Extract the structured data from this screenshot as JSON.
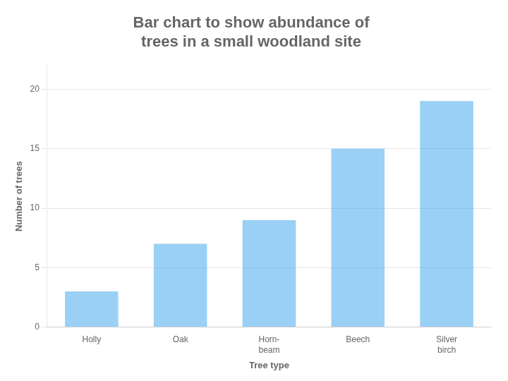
{
  "chart_data": {
    "type": "bar",
    "title": "Bar chart to show abundance of\ntrees in a small woodland site",
    "categories": [
      "Holly",
      "Oak",
      "Horn-\nbeam",
      "Beech",
      "Silver\nbirch"
    ],
    "values": [
      3,
      7,
      9,
      15,
      19
    ],
    "xlabel": "Tree type",
    "ylabel": "Number of trees",
    "ylim": [
      0,
      22
    ],
    "yticks": [
      0,
      5,
      10,
      15,
      20
    ],
    "grid": true
  }
}
